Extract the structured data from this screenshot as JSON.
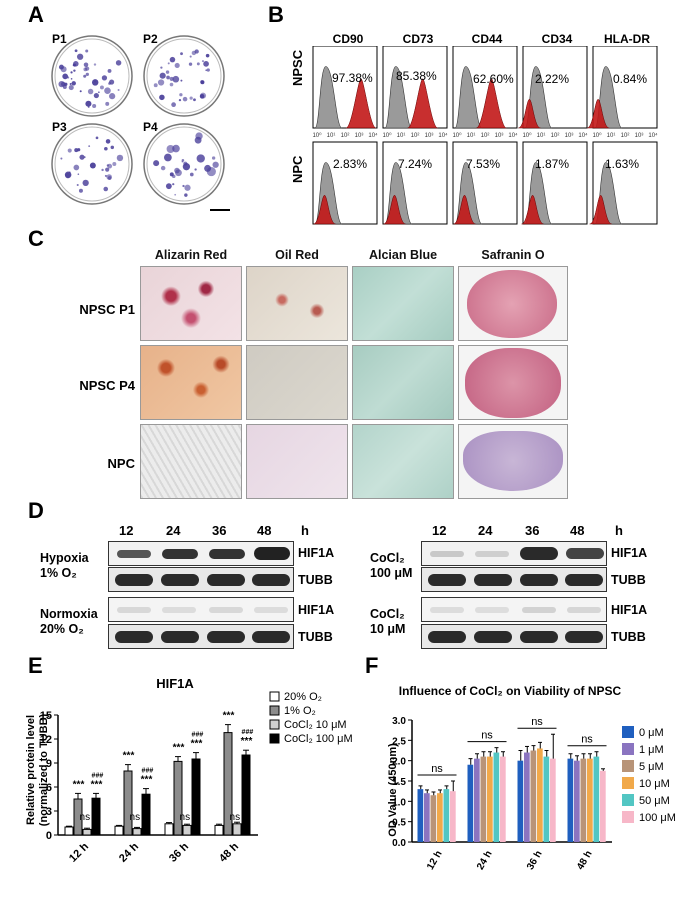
{
  "panels": {
    "a": "A",
    "b": "B",
    "c": "C",
    "d": "D",
    "e": "E",
    "f": "F"
  },
  "panel_a": {
    "plates": [
      {
        "label": "P1"
      },
      {
        "label": "P2"
      },
      {
        "label": "P3"
      },
      {
        "label": "P4"
      }
    ]
  },
  "panel_b": {
    "markers": [
      "CD90",
      "CD73",
      "CD44",
      "CD34",
      "HLA-DR"
    ],
    "rows": [
      {
        "label": "NPSC",
        "values": [
          "97.38%",
          "85.38%",
          "62.60%",
          "2.22%",
          "0.84%"
        ]
      },
      {
        "label": "NPC",
        "values": [
          "2.83%",
          "7.24%",
          "7.53%",
          "1.87%",
          "1.63%"
        ]
      }
    ],
    "tick_labels": [
      "10⁰",
      "10¹",
      "10²",
      "10³",
      "10⁴"
    ]
  },
  "panel_c": {
    "columns": [
      "Alizarin Red",
      "Oil Red",
      "Alcian Blue",
      "Safranin O"
    ],
    "rows": [
      "NPSC P1",
      "NPSC P4",
      "NPC"
    ]
  },
  "panel_d": {
    "left": {
      "times": [
        "12",
        "24",
        "36",
        "48"
      ],
      "unit": "h",
      "groups": [
        {
          "label1": "Hypoxia",
          "label2": "1% O₂",
          "bands": [
            "HIF1A",
            "TUBB"
          ]
        },
        {
          "label1": "Normoxia",
          "label2": "20% O₂",
          "bands": [
            "HIF1A",
            "TUBB"
          ]
        }
      ]
    },
    "right": {
      "times": [
        "12",
        "24",
        "36",
        "48"
      ],
      "unit": "h",
      "groups": [
        {
          "label1": "CoCl₂",
          "label2": "100 μM",
          "bands": [
            "HIF1A",
            "TUBB"
          ]
        },
        {
          "label1": "CoCl₂",
          "label2": "10 μM",
          "bands": [
            "HIF1A",
            "TUBB"
          ]
        }
      ]
    }
  },
  "chart_data": [
    {
      "type": "bar",
      "title": "HIF1A",
      "ylabel_line1": "Relative protein level",
      "ylabel_line2": "(normalized to TUBB)",
      "categories": [
        "12 h",
        "24 h",
        "36 h",
        "48 h"
      ],
      "ylim": [
        0,
        15
      ],
      "yticks": [
        0,
        3,
        6,
        9,
        12,
        15
      ],
      "series": [
        {
          "name": "20% O₂",
          "color": "#ffffff",
          "values": [
            1.0,
            1.1,
            1.4,
            1.2
          ],
          "errors": [
            0.1,
            0.1,
            0.15,
            0.15
          ]
        },
        {
          "name": "1% O₂",
          "color": "#8c8c8c",
          "values": [
            4.5,
            8.0,
            9.2,
            12.8
          ],
          "errors": [
            0.7,
            0.8,
            0.6,
            1.0
          ]
        },
        {
          "name": "CoCl₂ 10 μM",
          "color": "#d0d0d0",
          "values": [
            0.7,
            0.8,
            1.2,
            1.4
          ],
          "errors": [
            0.15,
            0.15,
            0.15,
            0.2
          ]
        },
        {
          "name": "CoCl₂ 100 μM",
          "color": "#000000",
          "values": [
            4.6,
            5.1,
            9.5,
            10.0
          ],
          "errors": [
            0.6,
            0.7,
            0.8,
            0.6
          ]
        }
      ],
      "annotations": {
        "ns": [
          "ns",
          "ns",
          "ns",
          "ns"
        ],
        "stars": "***",
        "hashes": "###"
      }
    },
    {
      "type": "bar",
      "title": "Influence of CoCl₂ on Viability of NPSC",
      "ylabel": "OD Value (450nm)",
      "categories": [
        "12 h",
        "24 h",
        "36 h",
        "48 h"
      ],
      "ylim": [
        0,
        3.0
      ],
      "yticks": [
        "0.0",
        "0.5",
        "1.0",
        "1.5",
        "2.0",
        "2.5",
        "3.0"
      ],
      "series": [
        {
          "name": "0 μM",
          "color": "#1f5fbf",
          "values": [
            1.3,
            1.9,
            2.0,
            2.05
          ],
          "errors": [
            0.08,
            0.15,
            0.25,
            0.12
          ]
        },
        {
          "name": "1 μM",
          "color": "#8a74c0",
          "values": [
            1.2,
            2.05,
            2.2,
            2.0
          ],
          "errors": [
            0.08,
            0.12,
            0.15,
            0.12
          ]
        },
        {
          "name": "5 μM",
          "color": "#b89478",
          "values": [
            1.15,
            2.1,
            2.25,
            2.05
          ],
          "errors": [
            0.08,
            0.12,
            0.12,
            0.12
          ]
        },
        {
          "name": "10 μM",
          "color": "#f1a94a",
          "values": [
            1.2,
            2.1,
            2.3,
            2.05
          ],
          "errors": [
            0.08,
            0.12,
            0.15,
            0.12
          ]
        },
        {
          "name": "50 μM",
          "color": "#52c6c3",
          "values": [
            1.3,
            2.2,
            2.1,
            2.1
          ],
          "errors": [
            0.08,
            0.12,
            0.15,
            0.12
          ]
        },
        {
          "name": "100 μM",
          "color": "#f7b7c8",
          "values": [
            1.25,
            2.1,
            2.05,
            1.75
          ],
          "errors": [
            0.25,
            0.12,
            0.6,
            0.05
          ]
        }
      ],
      "annotations": {
        "ns": [
          "ns",
          "ns",
          "ns",
          "ns"
        ]
      }
    }
  ]
}
